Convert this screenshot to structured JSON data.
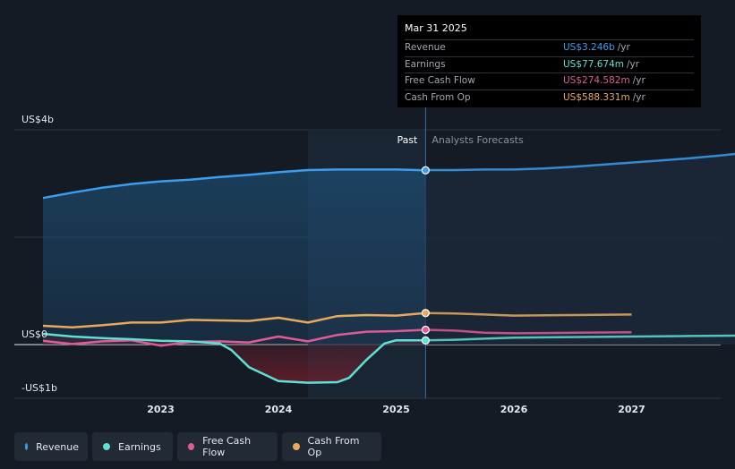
{
  "tooltip": {
    "date": "Mar 31 2025",
    "rows": [
      {
        "label": "Revenue",
        "value": "US$3.246b",
        "unit": "/yr",
        "color": "#3b9ded"
      },
      {
        "label": "Earnings",
        "value": "US$77.674m",
        "unit": "/yr",
        "color": "#5ee0d2"
      },
      {
        "label": "Free Cash Flow",
        "value": "US$274.582m",
        "unit": "/yr",
        "color": "#df5b97"
      },
      {
        "label": "Cash From Op",
        "value": "US$588.331m",
        "unit": "/yr",
        "color": "#e8a95c"
      }
    ]
  },
  "legend": [
    {
      "label": "Revenue",
      "color": "#3b9ded"
    },
    {
      "label": "Earnings",
      "color": "#5ee0d2"
    },
    {
      "label": "Free Cash Flow",
      "color": "#df5b97"
    },
    {
      "label": "Cash From Op",
      "color": "#e8a95c"
    }
  ],
  "chart_data": {
    "type": "line",
    "y_unit": "US$ billions",
    "ylim": [
      -1,
      4
    ],
    "y_ticks": [
      {
        "value": 4,
        "label": "US$4b"
      },
      {
        "value": 0,
        "label": "US$0"
      },
      {
        "value": -1,
        "label": "-US$1b"
      }
    ],
    "x_ticks": [
      {
        "value": 2023,
        "label": "2023"
      },
      {
        "value": 2024,
        "label": "2024"
      },
      {
        "value": 2025,
        "label": "2025"
      },
      {
        "value": 2026,
        "label": "2026"
      },
      {
        "value": 2027,
        "label": "2027"
      }
    ],
    "xlim": [
      2021.75,
      2028.0
    ],
    "divider_x": 2025.25,
    "past_label": "Past",
    "forecast_label": "Analysts Forecasts",
    "highlight_range": [
      2024.25,
      2025.25
    ],
    "series": [
      {
        "name": "Revenue",
        "color": "#3b9ded",
        "area": true,
        "points": [
          [
            2022.0,
            2.73
          ],
          [
            2022.25,
            2.83
          ],
          [
            2022.5,
            2.92
          ],
          [
            2022.75,
            2.99
          ],
          [
            2023.0,
            3.04
          ],
          [
            2023.25,
            3.07
          ],
          [
            2023.5,
            3.12
          ],
          [
            2023.75,
            3.16
          ],
          [
            2024.0,
            3.21
          ],
          [
            2024.25,
            3.25
          ],
          [
            2024.5,
            3.26
          ],
          [
            2024.75,
            3.26
          ],
          [
            2025.0,
            3.26
          ],
          [
            2025.25,
            3.246
          ]
        ],
        "forecast": [
          [
            2025.25,
            3.25
          ],
          [
            2025.5,
            3.25
          ],
          [
            2025.75,
            3.26
          ],
          [
            2026.0,
            3.26
          ],
          [
            2026.25,
            3.28
          ],
          [
            2026.5,
            3.31
          ],
          [
            2026.75,
            3.35
          ],
          [
            2027.0,
            3.39
          ],
          [
            2027.25,
            3.43
          ],
          [
            2027.5,
            3.47
          ],
          [
            2027.75,
            3.52
          ],
          [
            2028.0,
            3.58
          ]
        ]
      },
      {
        "name": "Cash From Op",
        "color": "#e8a95c",
        "area": false,
        "points": [
          [
            2022.0,
            0.35
          ],
          [
            2022.25,
            0.32
          ],
          [
            2022.5,
            0.36
          ],
          [
            2022.75,
            0.41
          ],
          [
            2023.0,
            0.41
          ],
          [
            2023.25,
            0.46
          ],
          [
            2023.5,
            0.45
          ],
          [
            2023.75,
            0.44
          ],
          [
            2024.0,
            0.5
          ],
          [
            2024.25,
            0.41
          ],
          [
            2024.5,
            0.53
          ],
          [
            2024.75,
            0.55
          ],
          [
            2025.0,
            0.54
          ],
          [
            2025.25,
            0.588
          ]
        ],
        "forecast": [
          [
            2025.25,
            0.588
          ],
          [
            2025.5,
            0.58
          ],
          [
            2025.75,
            0.56
          ],
          [
            2026.0,
            0.54
          ],
          [
            2026.5,
            0.55
          ],
          [
            2027.0,
            0.56
          ]
        ]
      },
      {
        "name": "Free Cash Flow",
        "color": "#df5b97",
        "area": false,
        "points": [
          [
            2022.0,
            0.07
          ],
          [
            2022.25,
            0.01
          ],
          [
            2022.5,
            0.06
          ],
          [
            2022.75,
            0.08
          ],
          [
            2023.0,
            -0.02
          ],
          [
            2023.25,
            0.05
          ],
          [
            2023.5,
            0.06
          ],
          [
            2023.75,
            0.04
          ],
          [
            2024.0,
            0.15
          ],
          [
            2024.25,
            0.06
          ],
          [
            2024.5,
            0.18
          ],
          [
            2024.75,
            0.24
          ],
          [
            2025.0,
            0.25
          ],
          [
            2025.25,
            0.275
          ]
        ],
        "forecast": [
          [
            2025.25,
            0.275
          ],
          [
            2025.5,
            0.26
          ],
          [
            2025.75,
            0.22
          ],
          [
            2026.0,
            0.21
          ],
          [
            2026.5,
            0.22
          ],
          [
            2027.0,
            0.23
          ]
        ]
      },
      {
        "name": "Earnings",
        "color": "#5ee0d2",
        "area": true,
        "points": [
          [
            2022.0,
            0.2
          ],
          [
            2022.25,
            0.15
          ],
          [
            2022.5,
            0.12
          ],
          [
            2022.75,
            0.1
          ],
          [
            2023.0,
            0.07
          ],
          [
            2023.25,
            0.06
          ],
          [
            2023.5,
            0.02
          ],
          [
            2023.6,
            -0.1
          ],
          [
            2023.75,
            -0.42
          ],
          [
            2024.0,
            -0.68
          ],
          [
            2024.25,
            -0.71
          ],
          [
            2024.5,
            -0.7
          ],
          [
            2024.6,
            -0.62
          ],
          [
            2024.75,
            -0.28
          ],
          [
            2024.9,
            0.02
          ],
          [
            2025.0,
            0.08
          ],
          [
            2025.25,
            0.078
          ]
        ],
        "forecast": [
          [
            2025.25,
            0.078
          ],
          [
            2025.5,
            0.09
          ],
          [
            2025.75,
            0.11
          ],
          [
            2026.0,
            0.13
          ],
          [
            2026.5,
            0.14
          ],
          [
            2027.0,
            0.15
          ],
          [
            2027.5,
            0.16
          ],
          [
            2028.0,
            0.17
          ]
        ]
      }
    ]
  }
}
